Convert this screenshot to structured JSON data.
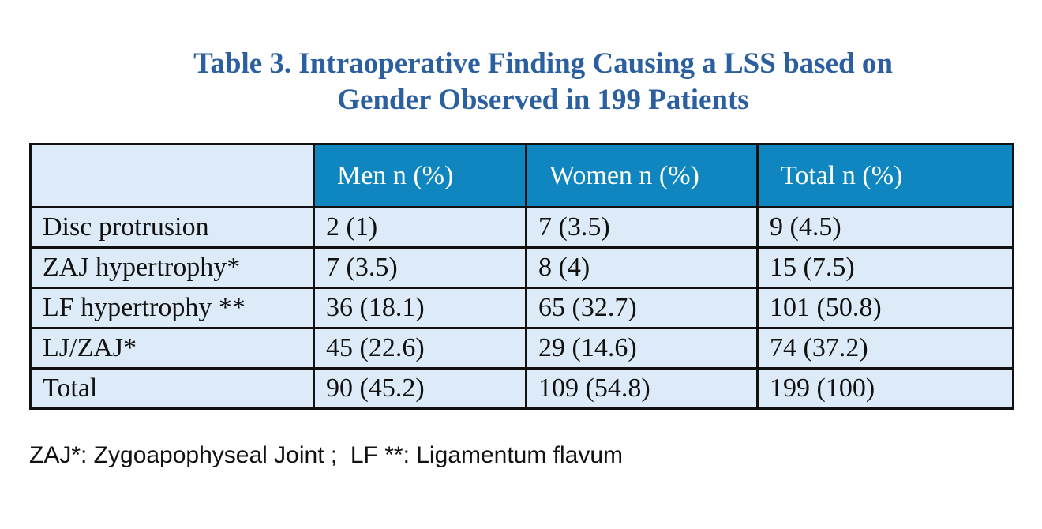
{
  "title": {
    "line1": "Table 3. Intraoperative Finding Causing a LSS based on",
    "line2": "Gender Observed in 199 Patients"
  },
  "table": {
    "header": {
      "corner": "",
      "men": "Men n (%)",
      "women": "Women n (%)",
      "total": "Total n (%)"
    },
    "rows": [
      {
        "label": "Disc protrusion",
        "men": "2 (1)",
        "women": "7 (3.5)",
        "total": "9 (4.5)"
      },
      {
        "label": "ZAJ hypertrophy*",
        "men": "7 (3.5)",
        "women": "8 (4)",
        "total": "15 (7.5)"
      },
      {
        "label": "LF hypertrophy **",
        "men": "36 (18.1)",
        "women": "65 (32.7)",
        "total": "101 (50.8)"
      },
      {
        "label": "LJ/ZAJ*",
        "men": "45 (22.6)",
        "women": "29 (14.6)",
        "total": "74 (37.2)"
      },
      {
        "label": "Total",
        "men": "90 (45.2)",
        "women": "109 (54.8)",
        "total": "199 (100)"
      }
    ]
  },
  "footnote": "ZAJ*: Zygoapophyseal Joint ;  LF **: Ligamentum flavum",
  "colors": {
    "title": "#2b5fa0",
    "header_bg": "#0f86bf",
    "cell_bg": "#dcebf7",
    "border": "#111111"
  }
}
